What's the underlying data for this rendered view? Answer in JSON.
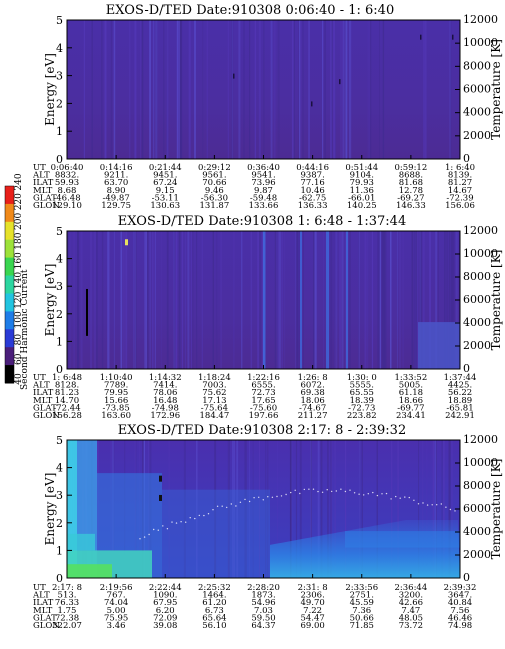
{
  "colors": {
    "background_purple": "#4b2ea3",
    "mid_blue": "#2f74e8",
    "cyan": "#38c9e8",
    "green": "#41d96a",
    "frame": "#000000"
  },
  "colorbar": {
    "title": "Second Harmonic Current",
    "ticks": [
      "40",
      "60",
      "80",
      "100",
      "120",
      "140",
      "160",
      "180",
      "200",
      "220",
      "240"
    ],
    "colors": [
      "#000000",
      "#4a1e7a",
      "#2a3bd6",
      "#1f7de8",
      "#22c4e0",
      "#2cd6a0",
      "#3ad650",
      "#9de23a",
      "#e6e22a",
      "#f08a1a",
      "#e8201a"
    ]
  },
  "chart_data": [
    {
      "type": "heatmap",
      "title": "EXOS-D/TED   Date:910308   0:06:40 -  1: 6:40",
      "ylabel": "Energy [eV]",
      "y2label": "Temperature [K]",
      "ylim": [
        0,
        5
      ],
      "y2lim": [
        0,
        12000
      ],
      "yticks": [
        "0",
        "1",
        "2",
        "3",
        "4",
        "5"
      ],
      "y2ticks": [
        "0",
        "2000",
        "4000",
        "6000",
        "8000",
        "10000",
        "12000"
      ],
      "ephemeris": {
        "labels": [
          "UT",
          "ALT",
          "ILAT",
          "MLT",
          "GLAT",
          "GLON"
        ],
        "columns": [
          [
            "0:06:40",
            "8832.",
            "59.93",
            "8.68",
            "-46.48",
            "129.10"
          ],
          [
            "0:14:16",
            "9211.",
            "63.70",
            "8.90",
            "-49.87",
            "129.75"
          ],
          [
            "0:21:44",
            "9451.",
            "67.24",
            "9.15",
            "-53.11",
            "130.63"
          ],
          [
            "0:29:12",
            "9561.",
            "70.66",
            "9.46",
            "-56.30",
            "131.87"
          ],
          [
            "0:36:40",
            "9541.",
            "73.96",
            "9.87",
            "-59.48",
            "133.66"
          ],
          [
            "0:44:16",
            "9387.",
            "77.16",
            "10.46",
            "-62.75",
            "136.33"
          ],
          [
            "0:51:44",
            "9104.",
            "79.93",
            "11.36",
            "-66.01",
            "140.25"
          ],
          [
            "0:59:12",
            "8688.",
            "81.68",
            "12.78",
            "-69.27",
            "146.33"
          ],
          [
            "1: 6:40",
            "8139.",
            "81.27",
            "14.67",
            "-72.39",
            "156.06"
          ]
        ]
      }
    },
    {
      "type": "heatmap",
      "title": "EXOS-D/TED   Date:910308   1: 6:48 - 1:37:44",
      "ylabel": "Energy [eV]",
      "y2label": "Temperature [K]",
      "ylim": [
        0,
        5
      ],
      "y2lim": [
        0,
        12000
      ],
      "yticks": [
        "0",
        "1",
        "2",
        "3",
        "4",
        "5"
      ],
      "y2ticks": [
        "0",
        "2000",
        "4000",
        "6000",
        "8000",
        "10000",
        "12000"
      ],
      "ephemeris": {
        "labels": [
          "UT",
          "ALT",
          "ILAT",
          "MLT",
          "GLAT",
          "GLON"
        ],
        "columns": [
          [
            "1: 6:48",
            "8128.",
            "81.23",
            "14.70",
            "-72.44",
            "156.28"
          ],
          [
            "1:10:40",
            "7789.",
            "79.95",
            "15.66",
            "-73.85",
            "163.60"
          ],
          [
            "1:14:32",
            "7414.",
            "78.06",
            "16.48",
            "-74.98",
            "172.96"
          ],
          [
            "1:18:24",
            "7003.",
            "75.62",
            "17.13",
            "-75.64",
            "184.47"
          ],
          [
            "1:22:16",
            "6555.",
            "72.73",
            "17.65",
            "-75.60",
            "197.66"
          ],
          [
            "1:26: 8",
            "6072.",
            "69.38",
            "18.06",
            "-74.67",
            "211.27"
          ],
          [
            "1:30: 0",
            "5555.",
            "65.55",
            "18.39",
            "-72.73",
            "223.82"
          ],
          [
            "1:33:52",
            "5005.",
            "61.18",
            "18.66",
            "-69.77",
            "234.41"
          ],
          [
            "1:37:44",
            "4425.",
            "56.22",
            "18.89",
            "-65.81",
            "242.91"
          ]
        ]
      }
    },
    {
      "type": "heatmap",
      "title": "EXOS-D/TED   Date:910308   2:17: 8 - 2:39:32",
      "ylabel": "Energy [eV]",
      "y2label": "Temperature [K]",
      "ylim": [
        0,
        5
      ],
      "y2lim": [
        0,
        12000
      ],
      "yticks": [
        "0",
        "1",
        "2",
        "3",
        "4",
        "5"
      ],
      "y2ticks": [
        "0",
        "2000",
        "4000",
        "6000",
        "8000",
        "10000",
        "12000"
      ],
      "ephemeris": {
        "labels": [
          "UT",
          "ALT",
          "ILAT",
          "MLT",
          "GLAT",
          "GLON"
        ],
        "columns": [
          [
            "2:17: 8",
            "513.",
            "76.33",
            "1.75",
            "72.38",
            "322.07"
          ],
          [
            "2:19:56",
            "767.",
            "74.04",
            "5.00",
            "75.95",
            "3.46"
          ],
          [
            "2:22:44",
            "1090.",
            "67.95",
            "6.20",
            "72.09",
            "39.08"
          ],
          [
            "2:25:32",
            "1464.",
            "61.20",
            "6.73",
            "65.64",
            "56.10"
          ],
          [
            "2:28:20",
            "1873.",
            "54.96",
            "7.03",
            "59.50",
            "64.37"
          ],
          [
            "2:31: 8",
            "2306.",
            "49.70",
            "7.22",
            "54.47",
            "69.00"
          ],
          [
            "2:33:56",
            "2751.",
            "45.59",
            "7.36",
            "50.66",
            "71.85"
          ],
          [
            "2:36:44",
            "3200.",
            "42.66",
            "7.47",
            "48.05",
            "73.72"
          ],
          [
            "2:39:32",
            "3647.",
            "40.84",
            "7.56",
            "46.46",
            "74.98"
          ]
        ]
      }
    }
  ]
}
